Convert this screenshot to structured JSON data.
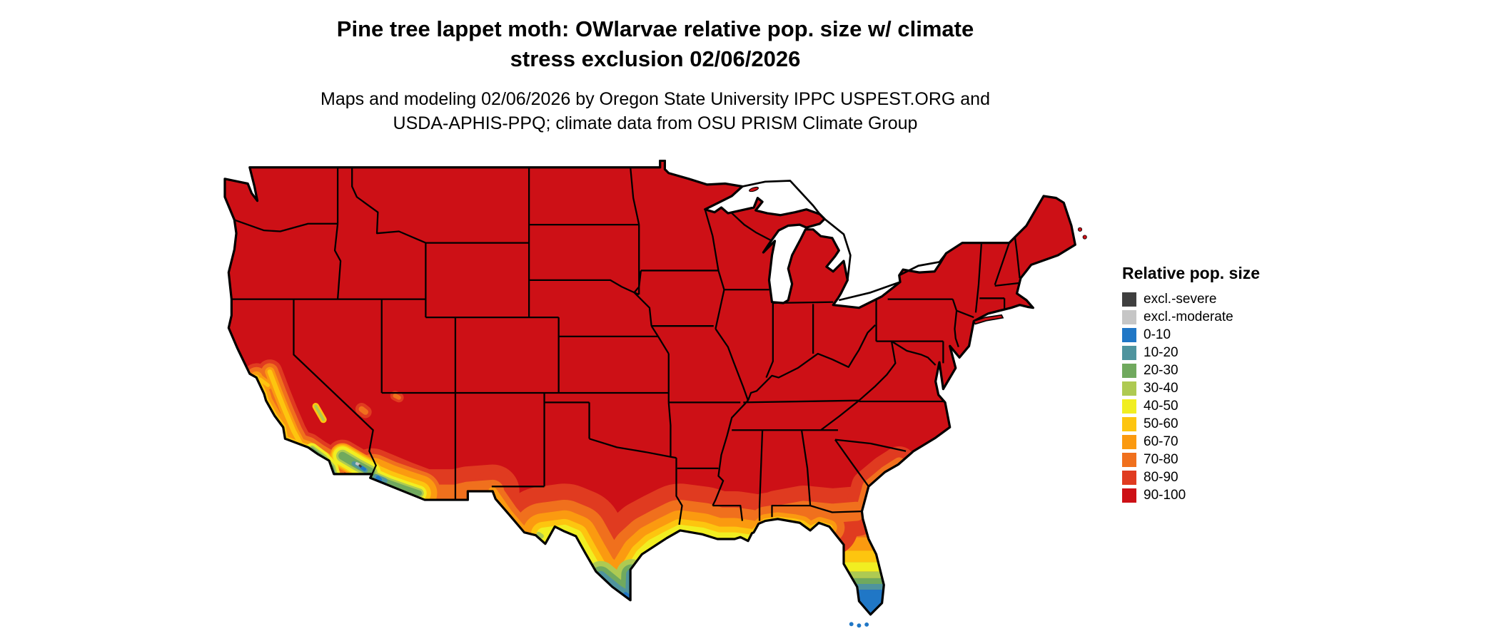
{
  "title": {
    "line1": "Pine tree lappet moth: OWlarvae relative pop. size w/ climate",
    "line2": "stress exclusion 02/06/2026"
  },
  "subtitle": {
    "line1": "Maps and modeling 02/06/2026 by Oregon State University IPPC USPEST.ORG and",
    "line2": "USDA-APHIS-PPQ; climate data from OSU PRISM Climate Group"
  },
  "legend": {
    "title": "Relative pop. size",
    "entries": [
      {
        "key": "excl_severe",
        "label": "excl.-severe",
        "color": "#3f3f3f"
      },
      {
        "key": "excl_moderate",
        "label": "excl.-moderate",
        "color": "#c6c6c6"
      },
      {
        "key": "b0_10",
        "label": "0-10",
        "color": "#2077c6"
      },
      {
        "key": "b10_20",
        "label": "10-20",
        "color": "#4f949e"
      },
      {
        "key": "b20_30",
        "label": "20-30",
        "color": "#70a95e"
      },
      {
        "key": "b30_40",
        "label": "30-40",
        "color": "#aeca52"
      },
      {
        "key": "b40_50",
        "label": "40-50",
        "color": "#f1ee21"
      },
      {
        "key": "b50_60",
        "label": "50-60",
        "color": "#fdc50f"
      },
      {
        "key": "b60_70",
        "label": "60-70",
        "color": "#fb9a10"
      },
      {
        "key": "b70_80",
        "label": "70-80",
        "color": "#f0701d"
      },
      {
        "key": "b80_90",
        "label": "80-90",
        "color": "#e03b20"
      },
      {
        "key": "b90_100",
        "label": "90-100",
        "color": "#cd1016"
      }
    ]
  },
  "map_data": {
    "type": "choropleth-raster",
    "region": "Continental United States with state boundaries",
    "dominant_class": "90-100",
    "water_color": "#ffffff",
    "boundary_color": "#000000",
    "cool_zones": [
      "southern Texas: Rio Grande valley and Gulf coast grade from orange through yellow and green to teal/blue at the southern tip",
      "Gulf of Mexico coastal strip: orange to yellow band along Texas, Louisiana, Mississippi, Alabama and the Florida panhandle",
      "Florida peninsula: grades southward from red-orange through orange, yellow, green to blue south of Lake Okeechobee; Keys blue",
      "California: orange/yellow along the coast and Central Valley, cooler green-teal-blue patches in the southeastern desert near San Diego and the Imperial Valley",
      "southwestern Arizona: concentric orange, yellow, green, teal and blue low-desert core along the Mexico border",
      "west Texas Big Bend and southern Nevada/Utah: small orange-yellow-green patches"
    ]
  }
}
